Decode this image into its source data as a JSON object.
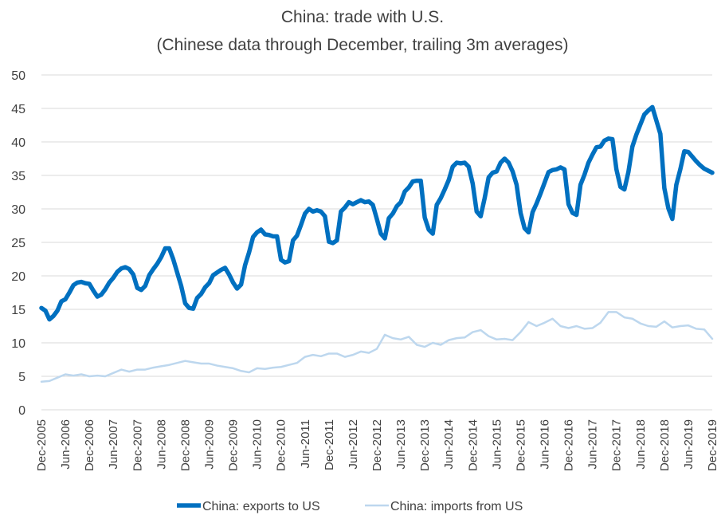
{
  "chart_data": {
    "type": "line",
    "title": "China: trade with U.S.",
    "subtitle": "(Chinese data through December, trailing 3m averages)",
    "xlabel": "",
    "ylabel": "",
    "ylim": [
      0,
      50
    ],
    "y_ticks": [
      0,
      5,
      10,
      15,
      20,
      25,
      30,
      35,
      40,
      45,
      50
    ],
    "grid": true,
    "legend_position": "bottom",
    "x_tick_labels": [
      "Dec-2005",
      "Jun-2006",
      "Dec-2006",
      "Jun-2007",
      "Dec-2007",
      "Jun-2008",
      "Dec-2008",
      "Jun-2009",
      "Dec-2009",
      "Jun-2010",
      "Dec-2010",
      "Jun-2011",
      "Dec-2011",
      "Jun-2012",
      "Dec-2012",
      "Jun-2013",
      "Dec-2013",
      "Jun-2014",
      "Dec-2014",
      "Jun-2015",
      "Dec-2015",
      "Jun-2016",
      "Dec-2016",
      "Jun-2017",
      "Dec-2017",
      "Jun-2018",
      "Dec-2018",
      "Jun-2019",
      "Dec-2019"
    ],
    "x_start": "Dec-2005",
    "x_end": "Dec-2019",
    "n_months": 169,
    "series": [
      {
        "name": "China: exports to US",
        "color": "#0070c0",
        "points": [
          [
            0,
            15.2
          ],
          [
            1,
            14.8
          ],
          [
            2,
            13.5
          ],
          [
            3,
            14.0
          ],
          [
            4,
            14.8
          ],
          [
            5,
            16.2
          ],
          [
            6,
            16.5
          ],
          [
            7,
            17.5
          ],
          [
            8,
            18.6
          ],
          [
            9,
            19.0
          ],
          [
            10,
            19.1
          ],
          [
            11,
            18.9
          ],
          [
            12,
            18.8
          ],
          [
            13,
            17.8
          ],
          [
            14,
            16.9
          ],
          [
            15,
            17.2
          ],
          [
            16,
            18.0
          ],
          [
            17,
            19.0
          ],
          [
            18,
            19.7
          ],
          [
            19,
            20.6
          ],
          [
            20,
            21.1
          ],
          [
            21,
            21.3
          ],
          [
            22,
            21.0
          ],
          [
            23,
            20.2
          ],
          [
            24,
            18.2
          ],
          [
            25,
            17.9
          ],
          [
            26,
            18.5
          ],
          [
            27,
            20.1
          ],
          [
            28,
            21.0
          ],
          [
            29,
            21.8
          ],
          [
            30,
            22.8
          ],
          [
            31,
            24.1
          ],
          [
            32,
            24.1
          ],
          [
            33,
            22.5
          ],
          [
            34,
            20.5
          ],
          [
            35,
            18.5
          ],
          [
            36,
            15.9
          ],
          [
            37,
            15.2
          ],
          [
            38,
            15.1
          ],
          [
            39,
            16.7
          ],
          [
            40,
            17.3
          ],
          [
            41,
            18.3
          ],
          [
            42,
            18.9
          ],
          [
            43,
            20.1
          ],
          [
            44,
            20.5
          ],
          [
            45,
            20.9
          ],
          [
            46,
            21.2
          ],
          [
            47,
            20.2
          ],
          [
            48,
            19.0
          ],
          [
            49,
            18.1
          ],
          [
            50,
            18.7
          ],
          [
            51,
            21.6
          ],
          [
            52,
            23.5
          ],
          [
            53,
            25.8
          ],
          [
            54,
            26.5
          ],
          [
            55,
            26.9
          ],
          [
            56,
            26.2
          ],
          [
            57,
            26.1
          ],
          [
            58,
            25.9
          ],
          [
            59,
            25.9
          ],
          [
            60,
            22.4
          ],
          [
            61,
            22.0
          ],
          [
            62,
            22.2
          ],
          [
            63,
            25.3
          ],
          [
            64,
            26.0
          ],
          [
            65,
            27.6
          ],
          [
            66,
            29.3
          ],
          [
            67,
            30.0
          ],
          [
            68,
            29.6
          ],
          [
            69,
            29.8
          ],
          [
            70,
            29.6
          ],
          [
            71,
            28.9
          ],
          [
            72,
            25.1
          ],
          [
            73,
            24.9
          ],
          [
            74,
            25.3
          ],
          [
            75,
            29.6
          ],
          [
            76,
            30.2
          ],
          [
            77,
            31.0
          ],
          [
            78,
            30.7
          ],
          [
            79,
            31.0
          ],
          [
            80,
            31.3
          ],
          [
            81,
            31.0
          ],
          [
            82,
            31.1
          ],
          [
            83,
            30.6
          ],
          [
            84,
            28.5
          ],
          [
            85,
            26.3
          ],
          [
            86,
            25.6
          ],
          [
            87,
            28.6
          ],
          [
            88,
            29.3
          ],
          [
            89,
            30.4
          ],
          [
            90,
            31.0
          ],
          [
            91,
            32.6
          ],
          [
            92,
            33.2
          ],
          [
            93,
            34.1
          ],
          [
            94,
            34.2
          ],
          [
            95,
            34.2
          ],
          [
            96,
            28.7
          ],
          [
            97,
            26.9
          ],
          [
            98,
            26.3
          ],
          [
            99,
            30.6
          ],
          [
            100,
            31.6
          ],
          [
            101,
            32.9
          ],
          [
            102,
            34.3
          ],
          [
            103,
            36.3
          ],
          [
            104,
            36.9
          ],
          [
            105,
            36.8
          ],
          [
            106,
            36.9
          ],
          [
            107,
            36.3
          ],
          [
            108,
            33.8
          ],
          [
            109,
            29.6
          ],
          [
            110,
            28.9
          ],
          [
            111,
            31.6
          ],
          [
            112,
            34.7
          ],
          [
            113,
            35.4
          ],
          [
            114,
            35.6
          ],
          [
            115,
            36.9
          ],
          [
            116,
            37.5
          ],
          [
            117,
            36.9
          ],
          [
            118,
            35.6
          ],
          [
            119,
            33.6
          ],
          [
            120,
            29.4
          ],
          [
            121,
            27.1
          ],
          [
            122,
            26.5
          ],
          [
            123,
            29.5
          ],
          [
            124,
            30.8
          ],
          [
            125,
            32.3
          ],
          [
            126,
            33.9
          ],
          [
            127,
            35.5
          ],
          [
            128,
            35.8
          ],
          [
            129,
            35.9
          ],
          [
            130,
            36.2
          ],
          [
            131,
            35.9
          ],
          [
            132,
            30.7
          ],
          [
            133,
            29.4
          ],
          [
            134,
            29.1
          ],
          [
            135,
            33.6
          ],
          [
            136,
            35.1
          ],
          [
            137,
            36.9
          ],
          [
            138,
            38.1
          ],
          [
            139,
            39.2
          ],
          [
            140,
            39.3
          ],
          [
            141,
            40.2
          ],
          [
            142,
            40.5
          ],
          [
            143,
            40.4
          ],
          [
            144,
            35.9
          ],
          [
            145,
            33.3
          ],
          [
            146,
            32.9
          ],
          [
            147,
            35.5
          ],
          [
            148,
            39.3
          ],
          [
            149,
            41.1
          ],
          [
            150,
            42.6
          ],
          [
            151,
            44.1
          ],
          [
            152,
            44.7
          ],
          [
            153,
            45.2
          ],
          [
            154,
            43.2
          ],
          [
            155,
            41.2
          ],
          [
            156,
            33.1
          ],
          [
            157,
            30.1
          ],
          [
            158,
            28.5
          ],
          [
            159,
            33.6
          ],
          [
            160,
            35.9
          ],
          [
            161,
            38.6
          ],
          [
            162,
            38.5
          ],
          [
            163,
            37.8
          ],
          [
            164,
            37.1
          ],
          [
            165,
            36.5
          ],
          [
            166,
            36.0
          ],
          [
            167,
            35.7
          ],
          [
            168,
            35.4
          ]
        ]
      },
      {
        "name": "China: imports from US",
        "color": "#bdd7ee",
        "points": [
          [
            0,
            4.2
          ],
          [
            2,
            4.3
          ],
          [
            4,
            4.8
          ],
          [
            6,
            5.3
          ],
          [
            8,
            5.1
          ],
          [
            10,
            5.3
          ],
          [
            12,
            5.0
          ],
          [
            14,
            5.1
          ],
          [
            16,
            5.0
          ],
          [
            18,
            5.5
          ],
          [
            20,
            6.0
          ],
          [
            22,
            5.7
          ],
          [
            24,
            6.0
          ],
          [
            26,
            6.0
          ],
          [
            28,
            6.3
          ],
          [
            30,
            6.5
          ],
          [
            32,
            6.7
          ],
          [
            34,
            7.0
          ],
          [
            36,
            7.3
          ],
          [
            38,
            7.1
          ],
          [
            40,
            6.9
          ],
          [
            42,
            6.9
          ],
          [
            44,
            6.6
          ],
          [
            46,
            6.4
          ],
          [
            48,
            6.2
          ],
          [
            50,
            5.8
          ],
          [
            52,
            5.6
          ],
          [
            54,
            6.2
          ],
          [
            56,
            6.1
          ],
          [
            58,
            6.3
          ],
          [
            60,
            6.4
          ],
          [
            62,
            6.7
          ],
          [
            64,
            7.0
          ],
          [
            66,
            7.9
          ],
          [
            68,
            8.2
          ],
          [
            70,
            8.0
          ],
          [
            72,
            8.4
          ],
          [
            74,
            8.4
          ],
          [
            76,
            7.9
          ],
          [
            78,
            8.2
          ],
          [
            80,
            8.7
          ],
          [
            82,
            8.5
          ],
          [
            84,
            9.1
          ],
          [
            86,
            11.2
          ],
          [
            88,
            10.7
          ],
          [
            90,
            10.5
          ],
          [
            92,
            10.9
          ],
          [
            94,
            9.7
          ],
          [
            96,
            9.4
          ],
          [
            98,
            10.0
          ],
          [
            100,
            9.7
          ],
          [
            102,
            10.4
          ],
          [
            104,
            10.7
          ],
          [
            106,
            10.8
          ],
          [
            108,
            11.6
          ],
          [
            110,
            11.9
          ],
          [
            112,
            11.0
          ],
          [
            114,
            10.5
          ],
          [
            116,
            10.6
          ],
          [
            118,
            10.4
          ],
          [
            120,
            11.6
          ],
          [
            122,
            13.1
          ],
          [
            124,
            12.5
          ],
          [
            126,
            13.0
          ],
          [
            128,
            13.6
          ],
          [
            130,
            12.5
          ],
          [
            132,
            12.2
          ],
          [
            134,
            12.5
          ],
          [
            136,
            12.1
          ],
          [
            138,
            12.2
          ],
          [
            140,
            13.0
          ],
          [
            142,
            14.6
          ],
          [
            144,
            14.6
          ],
          [
            146,
            13.8
          ],
          [
            148,
            13.6
          ],
          [
            150,
            12.9
          ],
          [
            152,
            12.5
          ],
          [
            154,
            12.4
          ],
          [
            156,
            13.2
          ],
          [
            158,
            12.3
          ],
          [
            160,
            12.5
          ],
          [
            162,
            12.6
          ],
          [
            164,
            12.1
          ],
          [
            166,
            12.0
          ],
          [
            168,
            10.6
          ]
        ]
      }
    ]
  }
}
